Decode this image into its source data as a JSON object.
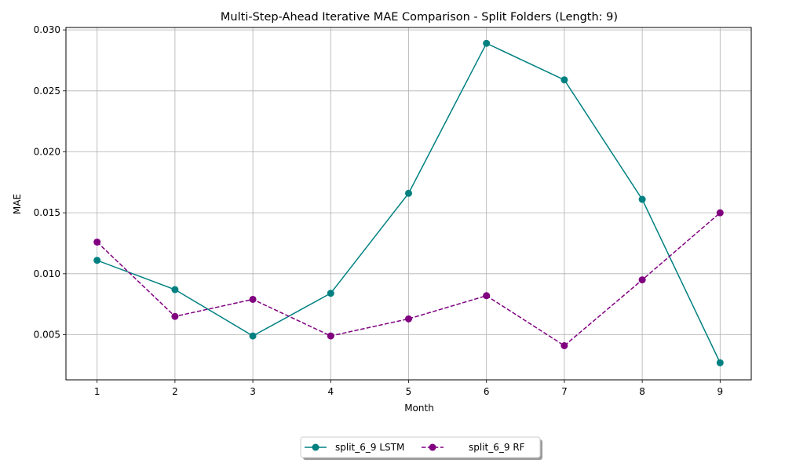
{
  "chart_data": {
    "type": "line",
    "title": "Multi-Step-Ahead Iterative MAE Comparison - Split Folders (Length: 9)",
    "xlabel": "Month",
    "ylabel": "MAE",
    "x": [
      1,
      2,
      3,
      4,
      5,
      6,
      7,
      8,
      9
    ],
    "xlim": [
      0.6,
      9.4
    ],
    "ylim": [
      0.0013,
      0.0302
    ],
    "yticks": [
      0.005,
      0.01,
      0.015,
      0.02,
      0.025,
      0.03
    ],
    "ytick_labels": [
      "0.005",
      "0.010",
      "0.015",
      "0.020",
      "0.025",
      "0.030"
    ],
    "xtick_labels": [
      "1",
      "2",
      "3",
      "4",
      "5",
      "6",
      "7",
      "8",
      "9"
    ],
    "grid": true,
    "legend_placement": "bottom-center",
    "series": [
      {
        "name": "split_6_9 LSTM",
        "color": "#008080",
        "line_style": "solid",
        "marker": "circle",
        "values": [
          0.0111,
          0.0087,
          0.0049,
          0.0084,
          0.0166,
          0.0289,
          0.0259,
          0.0161,
          0.0027
        ]
      },
      {
        "name": "split_6_9 RF",
        "color": "#800080",
        "line_style": "dashed",
        "marker": "circle",
        "values": [
          0.0126,
          0.0065,
          0.0079,
          0.0049,
          0.0063,
          0.0082,
          0.0041,
          0.0095,
          0.015
        ]
      }
    ]
  }
}
